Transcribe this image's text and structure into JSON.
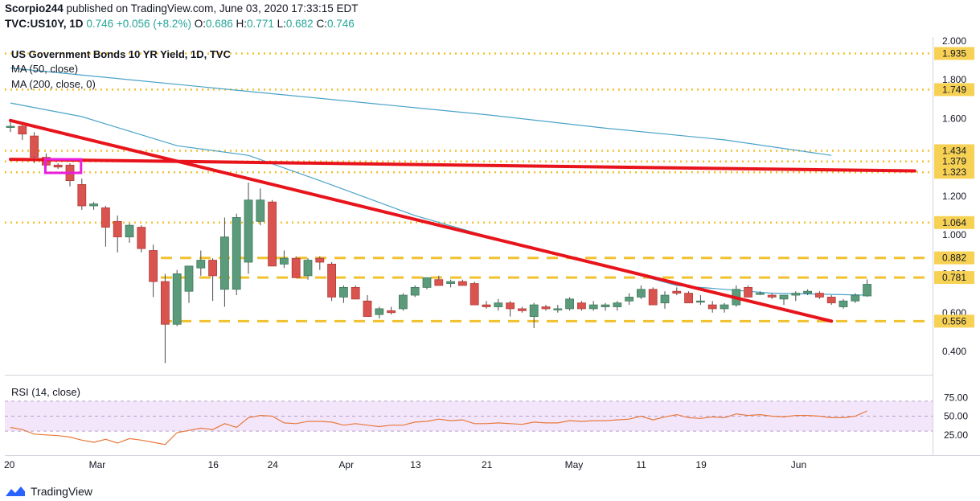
{
  "header": {
    "publisher": "Scorpio244",
    "published_text": " published on TradingView.com, June 03, 2020 17:33:15 EDT",
    "symbol": "TVC:US10Y, 1D",
    "last": "0.746",
    "change": "+0.056 (+8.2%)",
    "o_label": "O:",
    "o_val": "0.686",
    "h_label": "H:",
    "h_val": "0.771",
    "l_label": "L:",
    "l_val": "0.682",
    "c_label": "C:",
    "c_val": "0.746"
  },
  "legend": {
    "title": "US Government Bonds 10 YR Yield, 1D, TVC",
    "ma50": "MA (50, close)",
    "ma200": "MA (200, close, 0)",
    "rsi": "RSI (14, close)"
  },
  "footer": {
    "brand": "TradingView"
  },
  "colors": {
    "up": "#5b9a7a",
    "down": "#d9534f",
    "ma": "#4aa3c9",
    "rsi": "#e8793a",
    "trend": "#e8141c",
    "level": "#f2c12e",
    "rsi_band": "#f3e6fb"
  },
  "chart_data": {
    "type": "candlestick",
    "title": "US Government Bonds 10 YR Yield, 1D, TVC",
    "y_ticks": [
      2.0,
      1.8,
      1.6,
      1.4,
      1.2,
      1.0,
      0.8,
      0.6,
      0.4
    ],
    "ylim": [
      0.28,
      2.02
    ],
    "x_ticks": [
      "20",
      "Mar",
      "16",
      "24",
      "Apr",
      "13",
      "21",
      "May",
      "11",
      "19",
      "Jun"
    ],
    "x_tick_index": [
      0,
      7,
      17,
      22,
      28,
      34,
      40,
      47,
      53,
      58,
      66
    ],
    "levels": [
      {
        "value": 1.935,
        "label": "1.935",
        "style": "dotted"
      },
      {
        "value": 1.749,
        "label": "1.749",
        "style": "dotted"
      },
      {
        "value": 1.434,
        "label": "1.434",
        "style": "dotted"
      },
      {
        "value": 1.379,
        "label": "1.379",
        "style": "dotted"
      },
      {
        "value": 1.323,
        "label": "1.323",
        "style": "dotted"
      },
      {
        "value": 1.064,
        "label": "1.064",
        "style": "dotted"
      },
      {
        "value": 0.882,
        "label": "0.882",
        "style": "dashed"
      },
      {
        "value": 0.781,
        "label": "0.781",
        "style": "dashed"
      },
      {
        "value": 0.556,
        "label": "0.556",
        "style": "dashed"
      }
    ],
    "price_scale_extra": [
      {
        "value": 1.0,
        "label": "1.000"
      },
      {
        "value": 0.6,
        "label": "0.600"
      }
    ],
    "candles": [
      [
        1.56,
        1.59,
        1.53,
        1.56
      ],
      [
        1.56,
        1.57,
        1.49,
        1.52
      ],
      [
        1.51,
        1.53,
        1.37,
        1.4
      ],
      [
        1.4,
        1.42,
        1.35,
        1.36
      ],
      [
        1.36,
        1.37,
        1.34,
        1.35
      ],
      [
        1.36,
        1.37,
        1.25,
        1.28
      ],
      [
        1.26,
        1.29,
        1.13,
        1.15
      ],
      [
        1.15,
        1.17,
        1.13,
        1.16
      ],
      [
        1.14,
        1.15,
        0.94,
        1.04
      ],
      [
        1.07,
        1.1,
        0.91,
        0.99
      ],
      [
        0.99,
        1.06,
        0.96,
        1.05
      ],
      [
        1.04,
        1.05,
        0.91,
        0.93
      ],
      [
        0.92,
        0.95,
        0.68,
        0.76
      ],
      [
        0.76,
        0.8,
        0.34,
        0.54
      ],
      [
        0.54,
        0.82,
        0.53,
        0.8
      ],
      [
        0.71,
        0.84,
        0.65,
        0.84
      ],
      [
        0.83,
        0.92,
        0.79,
        0.87
      ],
      [
        0.87,
        0.88,
        0.66,
        0.79
      ],
      [
        0.72,
        1.09,
        0.63,
        0.99
      ],
      [
        0.72,
        1.11,
        0.69,
        1.09
      ],
      [
        0.86,
        1.27,
        0.8,
        1.18
      ],
      [
        1.07,
        1.24,
        1.05,
        1.18
      ],
      [
        1.17,
        1.18,
        0.84,
        0.84
      ],
      [
        0.85,
        0.92,
        0.83,
        0.88
      ],
      [
        0.88,
        0.89,
        0.78,
        0.78
      ],
      [
        0.79,
        0.88,
        0.77,
        0.87
      ],
      [
        0.88,
        0.89,
        0.82,
        0.86
      ],
      [
        0.85,
        0.86,
        0.66,
        0.68
      ],
      [
        0.68,
        0.74,
        0.65,
        0.73
      ],
      [
        0.73,
        0.74,
        0.67,
        0.67
      ],
      [
        0.66,
        0.69,
        0.58,
        0.58
      ],
      [
        0.59,
        0.63,
        0.57,
        0.62
      ],
      [
        0.61,
        0.63,
        0.59,
        0.6
      ],
      [
        0.62,
        0.7,
        0.61,
        0.69
      ],
      [
        0.69,
        0.74,
        0.68,
        0.73
      ],
      [
        0.73,
        0.78,
        0.72,
        0.78
      ],
      [
        0.77,
        0.79,
        0.74,
        0.74
      ],
      [
        0.75,
        0.77,
        0.73,
        0.76
      ],
      [
        0.76,
        0.77,
        0.74,
        0.74
      ],
      [
        0.75,
        0.76,
        0.64,
        0.64
      ],
      [
        0.64,
        0.66,
        0.62,
        0.63
      ],
      [
        0.63,
        0.67,
        0.61,
        0.65
      ],
      [
        0.65,
        0.66,
        0.58,
        0.62
      ],
      [
        0.62,
        0.63,
        0.6,
        0.61
      ],
      [
        0.58,
        0.65,
        0.52,
        0.64
      ],
      [
        0.63,
        0.64,
        0.61,
        0.62
      ],
      [
        0.62,
        0.64,
        0.6,
        0.62
      ],
      [
        0.62,
        0.68,
        0.61,
        0.67
      ],
      [
        0.65,
        0.66,
        0.61,
        0.62
      ],
      [
        0.62,
        0.66,
        0.61,
        0.64
      ],
      [
        0.63,
        0.65,
        0.61,
        0.64
      ],
      [
        0.63,
        0.66,
        0.61,
        0.65
      ],
      [
        0.66,
        0.7,
        0.64,
        0.68
      ],
      [
        0.68,
        0.74,
        0.67,
        0.72
      ],
      [
        0.72,
        0.73,
        0.64,
        0.64
      ],
      [
        0.65,
        0.71,
        0.62,
        0.69
      ],
      [
        0.71,
        0.73,
        0.69,
        0.7
      ],
      [
        0.7,
        0.71,
        0.65,
        0.65
      ],
      [
        0.66,
        0.69,
        0.64,
        0.66
      ],
      [
        0.64,
        0.66,
        0.6,
        0.62
      ],
      [
        0.62,
        0.65,
        0.6,
        0.64
      ],
      [
        0.64,
        0.74,
        0.63,
        0.72
      ],
      [
        0.73,
        0.74,
        0.68,
        0.68
      ],
      [
        0.7,
        0.71,
        0.69,
        0.7
      ],
      [
        0.69,
        0.7,
        0.67,
        0.68
      ],
      [
        0.67,
        0.69,
        0.64,
        0.69
      ],
      [
        0.69,
        0.71,
        0.66,
        0.7
      ],
      [
        0.7,
        0.72,
        0.69,
        0.71
      ],
      [
        0.7,
        0.71,
        0.67,
        0.68
      ],
      [
        0.68,
        0.69,
        0.64,
        0.65
      ],
      [
        0.63,
        0.67,
        0.62,
        0.66
      ],
      [
        0.66,
        0.7,
        0.65,
        0.69
      ],
      [
        0.686,
        0.771,
        0.682,
        0.746
      ]
    ],
    "ma50": [
      [
        0,
        1.68
      ],
      [
        6,
        1.61
      ],
      [
        14,
        1.46
      ],
      [
        20,
        1.41
      ],
      [
        26,
        1.28
      ],
      [
        34,
        1.1
      ],
      [
        42,
        0.96
      ],
      [
        50,
        0.84
      ],
      [
        56,
        0.74
      ],
      [
        64,
        0.7
      ],
      [
        72,
        0.69
      ]
    ],
    "ma200": [
      [
        0,
        1.86
      ],
      [
        10,
        1.8
      ],
      [
        20,
        1.74
      ],
      [
        30,
        1.68
      ],
      [
        40,
        1.62
      ],
      [
        50,
        1.55
      ],
      [
        60,
        1.49
      ],
      [
        69,
        1.41
      ]
    ],
    "trendlines": [
      {
        "from": [
          0,
          1.59
        ],
        "to": [
          69,
          0.556
        ]
      },
      {
        "from": [
          0,
          1.39
        ],
        "to": [
          76,
          1.33
        ]
      }
    ],
    "rsi": {
      "label": "RSI (14, close)",
      "ticks": [
        75,
        50,
        25
      ],
      "band": [
        30,
        70
      ],
      "values": [
        35,
        32,
        26,
        25,
        24,
        22,
        18,
        15,
        19,
        14,
        20,
        18,
        15,
        12,
        28,
        31,
        34,
        32,
        40,
        35,
        48,
        51,
        50,
        41,
        40,
        43,
        43,
        42,
        38,
        40,
        38,
        36,
        38,
        38,
        42,
        43,
        46,
        44,
        45,
        40,
        40,
        41,
        40,
        39,
        42,
        41,
        41,
        44,
        43,
        44,
        44,
        45,
        46,
        50,
        45,
        49,
        52,
        48,
        47,
        49,
        48,
        53,
        51,
        52,
        50,
        49,
        51,
        51,
        50,
        48,
        48,
        50,
        57
      ]
    }
  }
}
